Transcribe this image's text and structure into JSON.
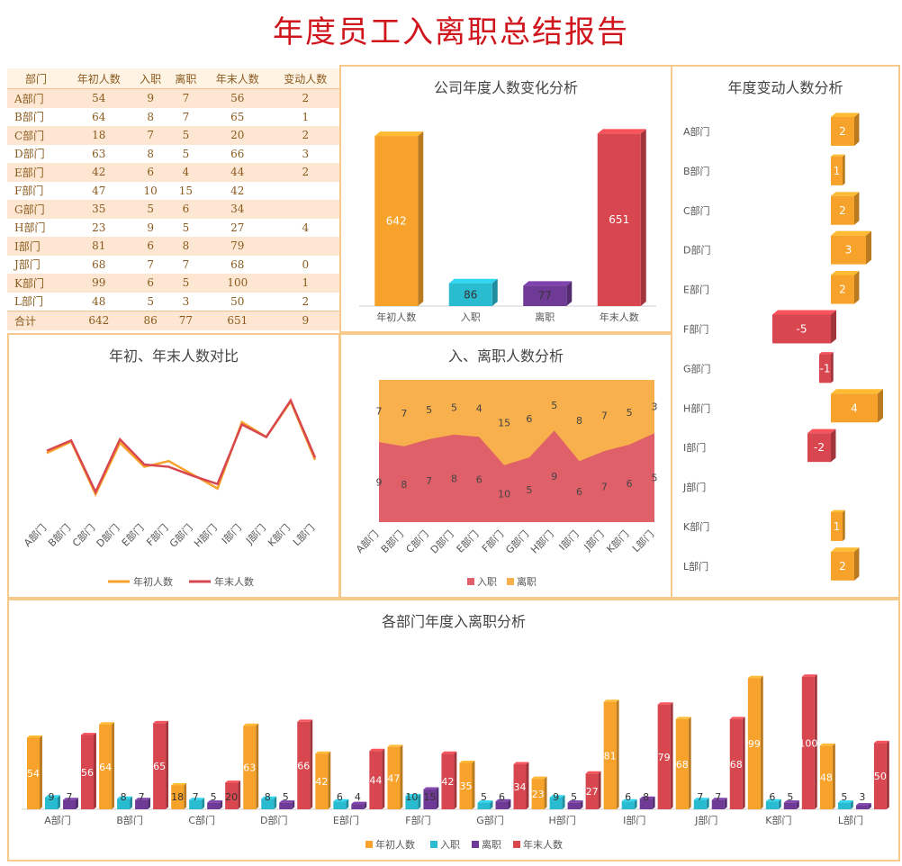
{
  "title": "年度员工入离职总结报告",
  "colors": {
    "orange": "#f7a32b",
    "cyan": "#29bcd1",
    "purple": "#6e3a96",
    "red": "#d8474f",
    "border": "#f6c98a",
    "title": "#d0161d"
  },
  "table": {
    "headers": [
      "部门",
      "年初人数",
      "入职",
      "离职",
      "年末人数",
      "变动人数"
    ],
    "rows": [
      [
        "A部门",
        "54",
        "9",
        "7",
        "56",
        "2"
      ],
      [
        "B部门",
        "64",
        "8",
        "7",
        "65",
        "1"
      ],
      [
        "C部门",
        "18",
        "7",
        "5",
        "20",
        "2"
      ],
      [
        "D部门",
        "63",
        "8",
        "5",
        "66",
        "3"
      ],
      [
        "E部门",
        "42",
        "6",
        "4",
        "44",
        "2"
      ],
      [
        "F部门",
        "47",
        "10",
        "15",
        "42",
        ""
      ],
      [
        "G部门",
        "35",
        "5",
        "6",
        "34",
        ""
      ],
      [
        "H部门",
        "23",
        "9",
        "5",
        "27",
        "4"
      ],
      [
        "I部门",
        "81",
        "6",
        "8",
        "79",
        ""
      ],
      [
        "J部门",
        "68",
        "7",
        "7",
        "68",
        "0"
      ],
      [
        "K部门",
        "99",
        "6",
        "5",
        "100",
        "1"
      ],
      [
        "L部门",
        "48",
        "5",
        "3",
        "50",
        "2"
      ]
    ],
    "total": [
      "合计",
      "642",
      "86",
      "77",
      "651",
      "9"
    ]
  },
  "chart_data": [
    {
      "type": "bar",
      "title": "公司年度人数变化分析",
      "categories": [
        "年初人数",
        "入职",
        "离职",
        "年末人数"
      ],
      "values": [
        642,
        86,
        77,
        651
      ],
      "colors": [
        "#f7a32b",
        "#29bcd1",
        "#6e3a96",
        "#d8474f"
      ],
      "ylim": [
        0,
        700
      ]
    },
    {
      "type": "bar",
      "orientation": "horizontal",
      "title": "年度变动人数分析",
      "categories": [
        "A部门",
        "B部门",
        "C部门",
        "D部门",
        "E部门",
        "F部门",
        "G部门",
        "H部门",
        "I部门",
        "J部门",
        "K部门",
        "L部门"
      ],
      "values": [
        2,
        1,
        2,
        3,
        2,
        -5,
        -1,
        4,
        -2,
        0,
        1,
        2
      ],
      "colors": {
        "positive": "#f7a32b",
        "negative": "#d8474f"
      }
    },
    {
      "type": "line",
      "title": "年初、年末人数对比",
      "categories": [
        "A部门",
        "B部门",
        "C部门",
        "D部门",
        "E部门",
        "F部门",
        "G部门",
        "H部门",
        "I部门",
        "J部门",
        "K部门",
        "L部门"
      ],
      "series": [
        {
          "name": "年初人数",
          "values": [
            54,
            64,
            18,
            63,
            42,
            47,
            35,
            23,
            81,
            68,
            99,
            48
          ],
          "color": "#f7a32b"
        },
        {
          "name": "年末人数",
          "values": [
            56,
            65,
            20,
            66,
            44,
            42,
            34,
            27,
            79,
            68,
            100,
            50
          ],
          "color": "#d8474f"
        }
      ],
      "legend": "bottom"
    },
    {
      "type": "area",
      "title": "入、离职人数分析",
      "categories": [
        "A部门",
        "B部门",
        "C部门",
        "D部门",
        "E部门",
        "F部门",
        "G部门",
        "H部门",
        "I部门",
        "J部门",
        "K部门",
        "L部门"
      ],
      "series": [
        {
          "name": "入职",
          "values": [
            9,
            8,
            7,
            8,
            6,
            10,
            5,
            9,
            6,
            7,
            6,
            5
          ],
          "color": "#e0606a"
        },
        {
          "name": "离职",
          "values": [
            7,
            7,
            5,
            5,
            4,
            15,
            6,
            5,
            8,
            7,
            5,
            3
          ],
          "color": "#f7b04b"
        }
      ],
      "stacked": "percent",
      "legend": "bottom"
    },
    {
      "type": "bar",
      "title": "各部门年度入离职分析",
      "categories": [
        "A部门",
        "B部门",
        "C部门",
        "D部门",
        "E部门",
        "F部门",
        "G部门",
        "H部门",
        "I部门",
        "J部门",
        "K部门",
        "L部门"
      ],
      "series": [
        {
          "name": "年初人数",
          "values": [
            54,
            64,
            18,
            63,
            42,
            47,
            35,
            23,
            81,
            68,
            99,
            48
          ],
          "color": "#f7a32b"
        },
        {
          "name": "入职",
          "values": [
            9,
            8,
            7,
            8,
            6,
            10,
            5,
            9,
            6,
            7,
            6,
            5
          ],
          "color": "#29bcd1"
        },
        {
          "name": "离职",
          "values": [
            7,
            7,
            5,
            5,
            4,
            15,
            6,
            5,
            8,
            7,
            5,
            3
          ],
          "color": "#6e3a96"
        },
        {
          "name": "年末人数",
          "values": [
            56,
            65,
            20,
            66,
            44,
            42,
            34,
            27,
            79,
            68,
            100,
            50
          ],
          "color": "#d8474f"
        }
      ],
      "legend": "bottom",
      "ylim": [
        0,
        110
      ]
    }
  ]
}
